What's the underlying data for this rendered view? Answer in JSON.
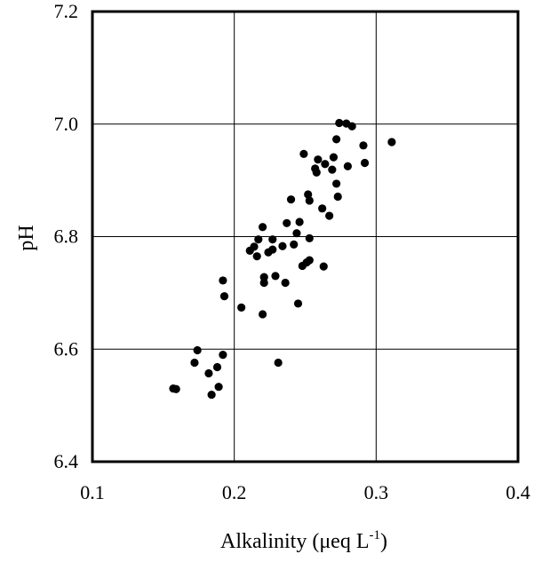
{
  "chart_data": {
    "type": "scatter",
    "title": "",
    "xlabel": "Alkalinity  (μeq L",
    "xlabel_sup": "-1",
    "xlabel_close": ")",
    "ylabel": "pH",
    "xlim": [
      0.1,
      0.4
    ],
    "ylim": [
      6.4,
      7.2
    ],
    "xticks": [
      "0.1",
      "0.2",
      "0.3",
      "0.4"
    ],
    "yticks": [
      "6.4",
      "6.6",
      "6.8",
      "7.0",
      "7.2"
    ],
    "grid": true,
    "marker_color": "#000000",
    "points": [
      [
        0.157,
        6.53
      ],
      [
        0.159,
        6.529
      ],
      [
        0.172,
        6.576
      ],
      [
        0.174,
        6.598
      ],
      [
        0.182,
        6.557
      ],
      [
        0.184,
        6.519
      ],
      [
        0.188,
        6.568
      ],
      [
        0.189,
        6.533
      ],
      [
        0.192,
        6.59
      ],
      [
        0.192,
        6.722
      ],
      [
        0.193,
        6.694
      ],
      [
        0.205,
        6.674
      ],
      [
        0.211,
        6.775
      ],
      [
        0.214,
        6.782
      ],
      [
        0.216,
        6.765
      ],
      [
        0.217,
        6.795
      ],
      [
        0.22,
        6.817
      ],
      [
        0.22,
        6.662
      ],
      [
        0.221,
        6.728
      ],
      [
        0.221,
        6.718
      ],
      [
        0.224,
        6.772
      ],
      [
        0.227,
        6.777
      ],
      [
        0.227,
        6.795
      ],
      [
        0.229,
        6.73
      ],
      [
        0.231,
        6.576
      ],
      [
        0.234,
        6.783
      ],
      [
        0.236,
        6.718
      ],
      [
        0.237,
        6.824
      ],
      [
        0.24,
        6.866
      ],
      [
        0.242,
        6.786
      ],
      [
        0.244,
        6.806
      ],
      [
        0.245,
        6.681
      ],
      [
        0.246,
        6.826
      ],
      [
        0.248,
        6.748
      ],
      [
        0.249,
        6.947
      ],
      [
        0.251,
        6.754
      ],
      [
        0.252,
        6.875
      ],
      [
        0.253,
        6.864
      ],
      [
        0.253,
        6.797
      ],
      [
        0.253,
        6.758
      ],
      [
        0.257,
        6.921
      ],
      [
        0.258,
        6.914
      ],
      [
        0.259,
        6.937
      ],
      [
        0.262,
        6.85
      ],
      [
        0.263,
        6.747
      ],
      [
        0.264,
        6.929
      ],
      [
        0.267,
        6.837
      ],
      [
        0.269,
        6.919
      ],
      [
        0.27,
        6.941
      ],
      [
        0.272,
        6.973
      ],
      [
        0.272,
        6.894
      ],
      [
        0.273,
        6.871
      ],
      [
        0.274,
        7.002
      ],
      [
        0.279,
        7.001
      ],
      [
        0.28,
        6.925
      ],
      [
        0.283,
        6.996
      ],
      [
        0.291,
        6.962
      ],
      [
        0.292,
        6.931
      ],
      [
        0.311,
        6.968
      ]
    ]
  }
}
